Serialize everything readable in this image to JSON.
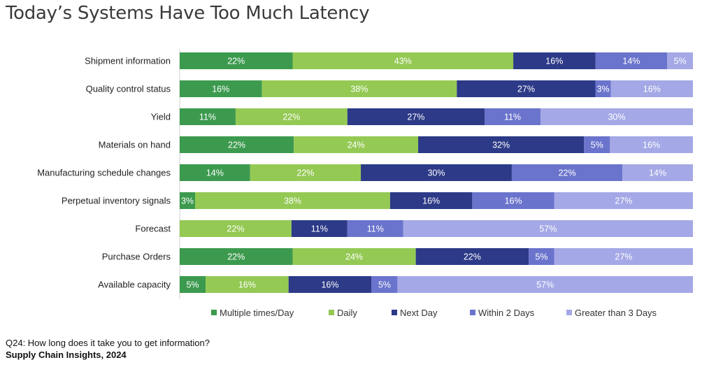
{
  "title": "Today’s Systems Have Too Much Latency",
  "footnote": "Q24: How long does it take you to get information?",
  "source": "Supply Chain Insights, 2024",
  "chart_data": {
    "type": "bar",
    "orientation": "horizontal",
    "stacked": true,
    "title": "",
    "xlabel": "",
    "ylabel": "",
    "xlim": [
      0,
      100
    ],
    "legend": "bottom",
    "grid": false,
    "categories": [
      "Shipment information",
      "Quality control status",
      "Yield",
      "Materials on hand",
      "Manufacturing schedule changes",
      "Perpetual inventory signals",
      "Forecast",
      "Purchase Orders",
      "Available capacity"
    ],
    "series": [
      {
        "name": "Multiple times/Day",
        "color": "#3c9a4e",
        "label_color": "#ffffff",
        "values": [
          22,
          16,
          11,
          22,
          14,
          3,
          0,
          22,
          5
        ]
      },
      {
        "name": "Daily",
        "color": "#94c954",
        "label_color": "#ffffff",
        "values": [
          43,
          38,
          22,
          24,
          22,
          38,
          22,
          24,
          16
        ]
      },
      {
        "name": "Next Day",
        "color": "#2c3a87",
        "label_color": "#ffffff",
        "values": [
          16,
          27,
          27,
          32,
          30,
          16,
          11,
          22,
          16
        ]
      },
      {
        "name": "Within 2 Days",
        "color": "#6a74cc",
        "label_color": "#ffffff",
        "values": [
          14,
          3,
          11,
          5,
          22,
          16,
          11,
          5,
          5
        ]
      },
      {
        "name": "Greater than 3 Days",
        "color": "#a4a8e6",
        "label_color": "#ffffff",
        "values": [
          5,
          16,
          30,
          16,
          14,
          27,
          57,
          27,
          57
        ]
      }
    ]
  }
}
